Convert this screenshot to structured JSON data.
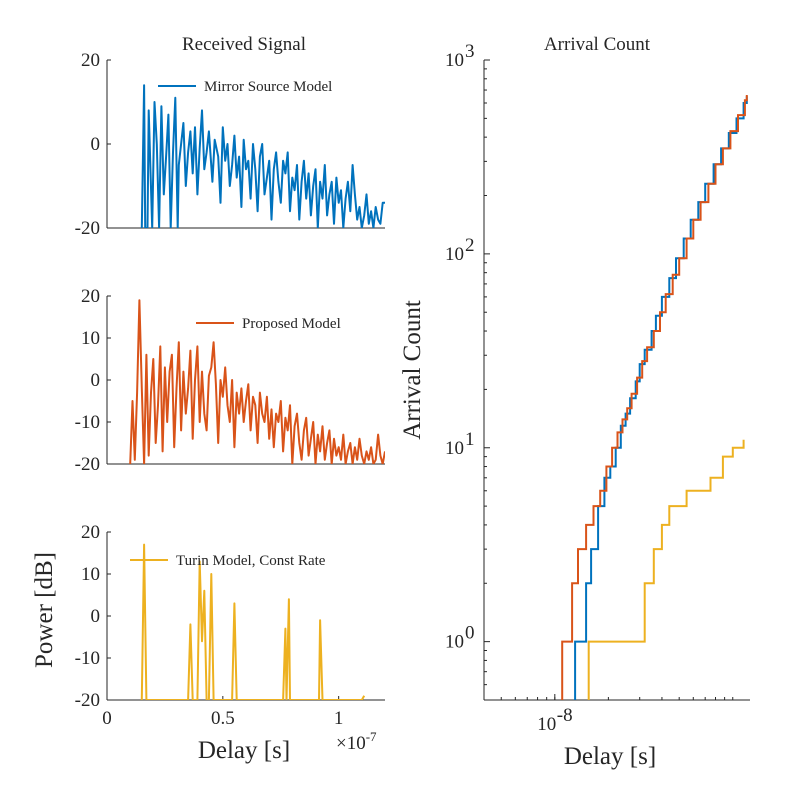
{
  "chart_data": [
    {
      "type": "line",
      "id": "mirror",
      "title": "Received Signal",
      "xlabel": "",
      "ylabel": "",
      "xlim": [
        0,
        1.2e-07
      ],
      "ylim": [
        -20,
        20
      ],
      "yticks": [
        -20,
        0,
        20
      ],
      "ytick_labels": [
        "-20",
        "0",
        "20"
      ],
      "legend": {
        "location": "top-right"
      },
      "series": [
        {
          "name": "Mirror Source Model",
          "color": "#0072BD",
          "x": [
            1.5e-08,
            1.6e-08,
            1.65e-08,
            1.75e-08,
            1.8e-08,
            1.95e-08,
            2.05e-08,
            2.15e-08,
            2.25e-08,
            2.35e-08,
            2.45e-08,
            2.55e-08,
            2.65e-08,
            2.75e-08,
            2.85e-08,
            2.95e-08,
            3.05e-08,
            3.1e-08,
            3.2e-08,
            3.3e-08,
            3.4e-08,
            3.5e-08,
            3.6e-08,
            3.7e-08,
            3.8e-08,
            3.9e-08,
            4e-08,
            4.1e-08,
            4.2e-08,
            4.3e-08,
            4.4e-08,
            4.55e-08,
            4.65e-08,
            4.8e-08,
            4.9e-08,
            5e-08,
            5.1e-08,
            5.2e-08,
            5.3e-08,
            5.4e-08,
            5.5e-08,
            5.6e-08,
            5.7e-08,
            5.8e-08,
            5.9e-08,
            6e-08,
            6.1e-08,
            6.2e-08,
            6.3e-08,
            6.4e-08,
            6.5e-08,
            6.6e-08,
            6.7e-08,
            6.8e-08,
            6.9e-08,
            7e-08,
            7.1e-08,
            7.2e-08,
            7.3e-08,
            7.4e-08,
            7.5e-08,
            7.6e-08,
            7.7e-08,
            7.8e-08,
            7.9e-08,
            8e-08,
            8.1e-08,
            8.2e-08,
            8.3e-08,
            8.4e-08,
            8.5e-08,
            8.6e-08,
            8.7e-08,
            8.8e-08,
            8.9e-08,
            9e-08,
            9.1e-08,
            9.2e-08,
            9.3e-08,
            9.4e-08,
            9.5e-08,
            9.6e-08,
            9.7e-08,
            9.8e-08,
            9.9e-08,
            1e-07,
            1.01e-07,
            1.02e-07,
            1.03e-07,
            1.04e-07,
            1.05e-07,
            1.06e-07,
            1.07e-07,
            1.08e-07,
            1.09e-07,
            1.1e-07,
            1.11e-07,
            1.12e-07,
            1.13e-07,
            1.14e-07,
            1.15e-07,
            1.16e-07,
            1.17e-07,
            1.18e-07,
            1.19e-07,
            1.2e-07
          ],
          "y": [
            -20,
            14,
            -20,
            -20,
            8,
            -20,
            10,
            0,
            -20,
            9,
            -12,
            -3,
            7,
            -20,
            -2,
            11,
            -20,
            -5,
            0,
            5,
            -10,
            -2,
            3,
            -7,
            4,
            -12,
            -1,
            8,
            -6,
            -2,
            3,
            -9,
            1,
            -3,
            -14,
            4,
            -4,
            0,
            -10,
            -5,
            2,
            -8,
            -3,
            -15,
            1,
            -6,
            -4,
            -13,
            0,
            -6,
            -16,
            -3,
            0,
            -12,
            -8,
            -4,
            -18,
            -6,
            -2,
            -9,
            -14,
            -4,
            -7,
            -2,
            -16,
            -8,
            -11,
            -5,
            -18,
            -9,
            -4,
            -13,
            -7,
            -17,
            -10,
            -6,
            -20,
            -9,
            -13,
            -5,
            -17,
            -12,
            -9,
            -19,
            -8,
            -14,
            -11,
            -20,
            -13,
            -9,
            -16,
            -5,
            -12,
            -18,
            -15,
            -20,
            -17,
            -12,
            -19,
            -16,
            -20,
            -15,
            -18,
            -19,
            -14,
            -14
          ]
        }
      ]
    },
    {
      "type": "line",
      "id": "proposed",
      "title": "",
      "xlabel": "",
      "ylabel": "",
      "xlim": [
        0,
        1.2e-07
      ],
      "ylim": [
        -20,
        20
      ],
      "yticks": [
        -20,
        -10,
        0,
        10,
        20
      ],
      "ytick_labels": [
        "-20",
        "-10",
        "0",
        "10",
        "20"
      ],
      "legend": {
        "location": "top-right"
      },
      "series": [
        {
          "name": "Proposed Model",
          "color": "#D95319",
          "x": [
            1e-08,
            1.1e-08,
            1.2e-08,
            1.3e-08,
            1.4e-08,
            1.5e-08,
            1.6e-08,
            1.7e-08,
            1.8e-08,
            1.9e-08,
            2e-08,
            2.1e-08,
            2.2e-08,
            2.3e-08,
            2.4e-08,
            2.5e-08,
            2.6e-08,
            2.7e-08,
            2.8e-08,
            2.9e-08,
            3e-08,
            3.1e-08,
            3.2e-08,
            3.3e-08,
            3.4e-08,
            3.5e-08,
            3.6e-08,
            3.7e-08,
            3.8e-08,
            3.9e-08,
            4e-08,
            4.1e-08,
            4.2e-08,
            4.3e-08,
            4.4e-08,
            4.5e-08,
            4.6e-08,
            4.7e-08,
            4.8e-08,
            4.9e-08,
            5e-08,
            5.1e-08,
            5.2e-08,
            5.3e-08,
            5.4e-08,
            5.5e-08,
            5.6e-08,
            5.7e-08,
            5.8e-08,
            5.9e-08,
            6e-08,
            6.1e-08,
            6.2e-08,
            6.3e-08,
            6.4e-08,
            6.5e-08,
            6.6e-08,
            6.7e-08,
            6.8e-08,
            6.9e-08,
            7e-08,
            7.1e-08,
            7.2e-08,
            7.3e-08,
            7.4e-08,
            7.5e-08,
            7.6e-08,
            7.7e-08,
            7.8e-08,
            7.9e-08,
            8e-08,
            8.1e-08,
            8.2e-08,
            8.3e-08,
            8.4e-08,
            8.5e-08,
            8.6e-08,
            8.7e-08,
            8.8e-08,
            8.9e-08,
            9e-08,
            9.1e-08,
            9.2e-08,
            9.3e-08,
            9.4e-08,
            9.5e-08,
            9.6e-08,
            9.7e-08,
            9.8e-08,
            9.9e-08,
            1e-07,
            1.01e-07,
            1.02e-07,
            1.03e-07,
            1.04e-07,
            1.05e-07,
            1.06e-07,
            1.07e-07,
            1.08e-07,
            1.09e-07,
            1.1e-07,
            1.11e-07,
            1.12e-07,
            1.13e-07,
            1.14e-07,
            1.15e-07,
            1.16e-07,
            1.17e-07,
            1.18e-07,
            1.19e-07,
            1.2e-07
          ],
          "y": [
            -20,
            -5,
            -19,
            -3,
            19,
            -2,
            -20,
            6,
            -18,
            -3,
            5,
            -15,
            -6,
            8,
            -17,
            3,
            -10,
            2,
            6,
            -16,
            -2,
            9,
            -12,
            2,
            -8,
            -2,
            7,
            -14,
            0,
            8,
            -10,
            2,
            -8,
            -12,
            1,
            3,
            9,
            -1,
            -15,
            0,
            -4,
            3,
            -6,
            -10,
            0,
            -16,
            -3,
            -8,
            -2,
            -10,
            -5,
            -1,
            -12,
            -4,
            -6,
            -15,
            -3,
            -8,
            -10,
            -4,
            -14,
            -7,
            -16,
            -8,
            -10,
            -5,
            -17,
            -9,
            -12,
            -6,
            -20,
            -11,
            -8,
            -15,
            -19,
            -12,
            -9,
            -18,
            -14,
            -10,
            -20,
            -13,
            -17,
            -11,
            -19,
            -15,
            -12,
            -20,
            -14,
            -18,
            -16,
            -19,
            -13,
            -20,
            -17,
            -15,
            -20,
            -16,
            -19,
            -14,
            -18,
            -20,
            -17,
            -19,
            -16,
            -20,
            -19,
            -13,
            -18,
            -20,
            -17
          ]
        }
      ]
    },
    {
      "type": "line",
      "id": "turin",
      "title": "",
      "xlabel": "Delay [s]",
      "ylabel": "Power [dB]",
      "xlim": [
        0,
        1.2e-07
      ],
      "ylim": [
        -20,
        20
      ],
      "xticks": [
        0,
        5e-08,
        1e-07
      ],
      "xtick_labels": [
        "0",
        "0.5",
        "1"
      ],
      "x_exponent_label": "×10",
      "x_exponent_power": "-7",
      "yticks": [
        -20,
        -10,
        0,
        10,
        20
      ],
      "ytick_labels": [
        "-20",
        "-10",
        "0",
        "10",
        "20"
      ],
      "legend": {
        "location": "top-right"
      },
      "series": [
        {
          "name": "Turin Model, Const Rate",
          "color": "#EDB120",
          "x": [
            1.5e-08,
            1.6e-08,
            1.7e-08,
            3.5e-08,
            3.6e-08,
            3.7e-08,
            3.9e-08,
            4e-08,
            4.1e-08,
            4.2e-08,
            4.3e-08,
            4.4e-08,
            4.5e-08,
            4.6e-08,
            4.7e-08,
            5.4e-08,
            5.5e-08,
            5.6e-08,
            7.6e-08,
            7.7e-08,
            7.75e-08,
            7.85e-08,
            7.9e-08,
            9.15e-08,
            9.2e-08,
            9.3e-08,
            1.1e-07,
            1.11e-07
          ],
          "y": [
            -20,
            17,
            -20,
            -20,
            -2,
            -20,
            -20,
            13,
            -6,
            6,
            -20,
            -20,
            10,
            -20,
            -20,
            -20,
            3,
            -20,
            -20,
            -3,
            -20,
            4,
            -20,
            -20,
            -1,
            -20,
            -20,
            -19
          ]
        }
      ]
    },
    {
      "type": "line",
      "id": "arrival",
      "title": "Arrival Count",
      "xlabel": "Delay [s]",
      "ylabel": "Arrival Count",
      "xscale": "log",
      "yscale": "log",
      "xlim": [
        4e-09,
        1.25e-07
      ],
      "ylim": [
        0.5,
        1000
      ],
      "xticks": [
        1e-08
      ],
      "xtick_labels": [
        "10"
      ],
      "xtick_powers": [
        "-8"
      ],
      "yticks": [
        1,
        10,
        100,
        1000
      ],
      "ytick_labels": [
        "10",
        "10",
        "10",
        "10"
      ],
      "ytick_powers": [
        "0",
        "1",
        "2",
        "3"
      ],
      "series": [
        {
          "name": "Mirror Source Model",
          "color": "#0072BD",
          "x": [
            1.3e-08,
            1.3e-08,
            1.5e-08,
            1.5e-08,
            1.6e-08,
            1.75e-08,
            1.9e-08,
            2.05e-08,
            2.2e-08,
            2.35e-08,
            2.5e-08,
            2.65e-08,
            2.85e-08,
            3e-08,
            3.2e-08,
            3.5e-08,
            3.7e-08,
            4e-08,
            4.4e-08,
            4.8e-08,
            5.3e-08,
            5.8e-08,
            6.4e-08,
            7e-08,
            7.8e-08,
            8.6e-08,
            9.5e-08,
            1.05e-07,
            1.15e-07,
            1.2e-07
          ],
          "y": [
            0.5,
            1,
            1,
            2,
            3,
            5,
            7,
            8,
            10,
            13,
            15,
            18,
            22,
            27,
            32,
            40,
            48,
            60,
            75,
            95,
            120,
            150,
            185,
            230,
            290,
            350,
            420,
            500,
            600,
            650
          ]
        },
        {
          "name": "Proposed Model",
          "color": "#D95319",
          "x": [
            1.1e-08,
            1.1e-08,
            1.25e-08,
            1.25e-08,
            1.35e-08,
            1.5e-08,
            1.65e-08,
            1.8e-08,
            1.95e-08,
            2.1e-08,
            2.25e-08,
            2.4e-08,
            2.55e-08,
            2.7e-08,
            2.9e-08,
            3.1e-08,
            3.3e-08,
            3.6e-08,
            3.9e-08,
            4.2e-08,
            4.6e-08,
            5e-08,
            5.5e-08,
            6e-08,
            6.6e-08,
            7.3e-08,
            8e-08,
            8.8e-08,
            9.7e-08,
            1.07e-07,
            1.17e-07,
            1.2e-07
          ],
          "y": [
            0.5,
            1,
            1,
            2,
            3,
            4,
            5,
            6,
            8,
            10,
            12,
            14,
            16,
            19,
            23,
            28,
            33,
            40,
            50,
            62,
            78,
            95,
            120,
            150,
            185,
            230,
            290,
            350,
            430,
            520,
            620,
            660
          ]
        },
        {
          "name": "Turin Model, Const Rate",
          "color": "#EDB120",
          "x": [
            1.55e-08,
            1.55e-08,
            3.2e-08,
            3.2e-08,
            3.6e-08,
            3.6e-08,
            4e-08,
            4e-08,
            4.4e-08,
            4.4e-08,
            5.5e-08,
            5.5e-08,
            7.5e-08,
            7.5e-08,
            8.8e-08,
            8.8e-08,
            1e-07,
            1e-07,
            1.15e-07,
            1.15e-07
          ],
          "y": [
            0.5,
            1,
            1,
            2,
            2,
            3,
            3,
            4,
            4,
            5,
            5,
            6,
            6,
            7,
            7,
            9,
            9,
            10,
            10,
            11
          ]
        }
      ]
    }
  ]
}
